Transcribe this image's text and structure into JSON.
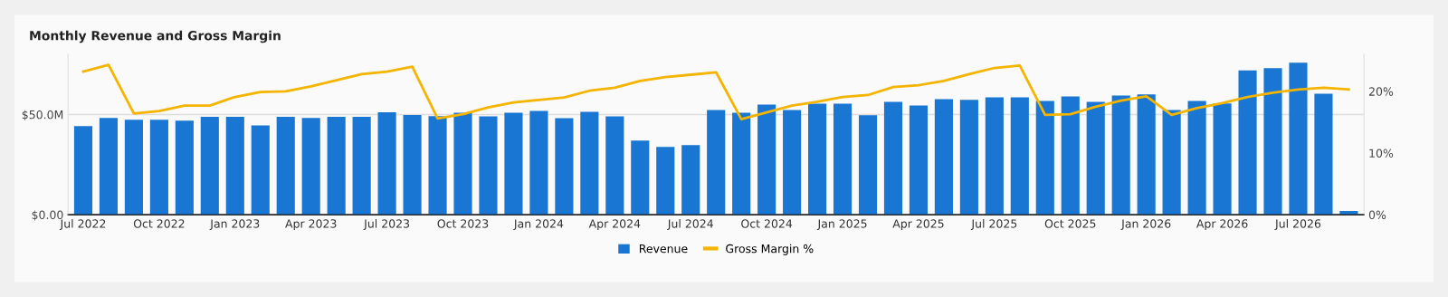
{
  "chart_data": {
    "type": "bar",
    "title": "Monthly Revenue and Gross Margin",
    "categories": [
      "Jul 2022",
      null,
      null,
      "Oct 2022",
      null,
      null,
      "Jan 2023",
      null,
      null,
      "Apr 2023",
      null,
      null,
      "Jul 2023",
      null,
      null,
      "Oct 2023",
      null,
      null,
      "Jan 2024",
      null,
      null,
      "Apr 2024",
      null,
      null,
      "Jul 2024",
      null,
      null,
      "Oct 2024",
      null,
      null,
      "Jan 2025",
      null,
      null,
      "Apr 2025",
      null,
      null,
      "Jul 2025",
      null,
      null,
      "Oct 2025",
      null,
      null,
      "Jan 2026",
      null,
      null,
      "Apr 2026",
      null,
      null,
      "Jul 2026",
      null,
      null
    ],
    "series": [
      {
        "name": "Revenue",
        "color": "#1976d2",
        "values": [
          44.2,
          48.3,
          47.4,
          47.4,
          46.9,
          48.8,
          48.8,
          44.6,
          48.8,
          48.3,
          48.8,
          48.8,
          51.1,
          49.7,
          49.2,
          50.9,
          49.1,
          50.9,
          51.8,
          48.2,
          51.3,
          49.1,
          37.0,
          33.8,
          34.7,
          52.2,
          50.9,
          54.9,
          52.2,
          55.4,
          55.4,
          49.6,
          56.3,
          54.5,
          57.7,
          57.3,
          58.5,
          58.5,
          56.8,
          59.0,
          56.3,
          59.5,
          60.0,
          52.2,
          56.8,
          55.5,
          72.0,
          73.1,
          75.8,
          60.4,
          1.9
        ]
      },
      {
        "name": "Gross Margin %",
        "type": "line",
        "axis": "y2",
        "color": "#f4b400",
        "values": [
          23.2,
          24.3,
          16.4,
          16.8,
          17.7,
          17.7,
          19.1,
          19.9,
          20.0,
          20.8,
          21.8,
          22.8,
          23.2,
          24.0,
          15.6,
          16.3,
          17.4,
          18.2,
          18.6,
          19.0,
          20.1,
          20.6,
          21.7,
          22.3,
          22.7,
          23.1,
          15.5,
          16.6,
          17.7,
          18.3,
          19.1,
          19.4,
          20.7,
          21.0,
          21.7,
          22.8,
          23.8,
          24.2,
          16.2,
          16.3,
          17.5,
          18.5,
          19.2,
          16.2,
          17.3,
          18.1,
          19.1,
          19.8,
          20.3,
          20.6,
          20.3
        ]
      }
    ],
    "ylim": [
      0,
      80
    ],
    "yticks": [
      {
        "value": 0,
        "label": "$0.00"
      },
      {
        "value": 50,
        "label": "$50.0M"
      }
    ],
    "y2lim": [
      0,
      26
    ],
    "y2ticks": [
      {
        "value": 0,
        "label": "0%"
      },
      {
        "value": 10,
        "label": "10%"
      },
      {
        "value": 20,
        "label": "20%"
      }
    ],
    "grid": "y",
    "legend": "bottom",
    "marker": "none",
    "line_style": "solid"
  }
}
